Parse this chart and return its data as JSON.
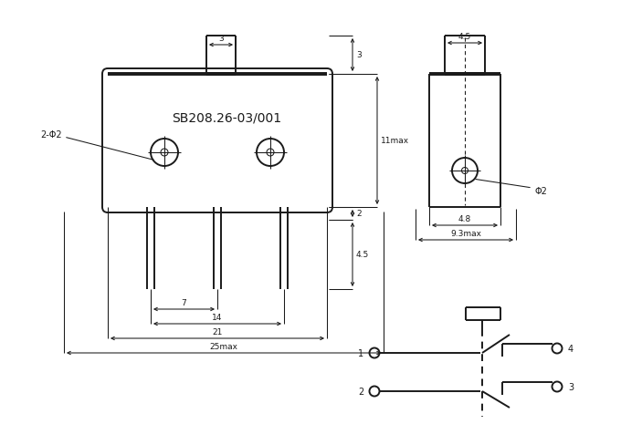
{
  "bg_color": "#ffffff",
  "line_color": "#1a1a1a",
  "title_text": "SB208.26-03/001",
  "label_2phi2": "2-Φ2",
  "label_phi2": "Φ2",
  "dim_3_btn": "3",
  "dim_4_5_top": "4.5",
  "dim_3_right": "3",
  "dim_11max": "11max",
  "dim_2": "2",
  "dim_4_5_bot": "4.5",
  "dim_7": "7",
  "dim_14": "14",
  "dim_21": "21",
  "dim_25max": "25max",
  "dim_4_8": "4.8",
  "dim_9_3max": "9.3max"
}
